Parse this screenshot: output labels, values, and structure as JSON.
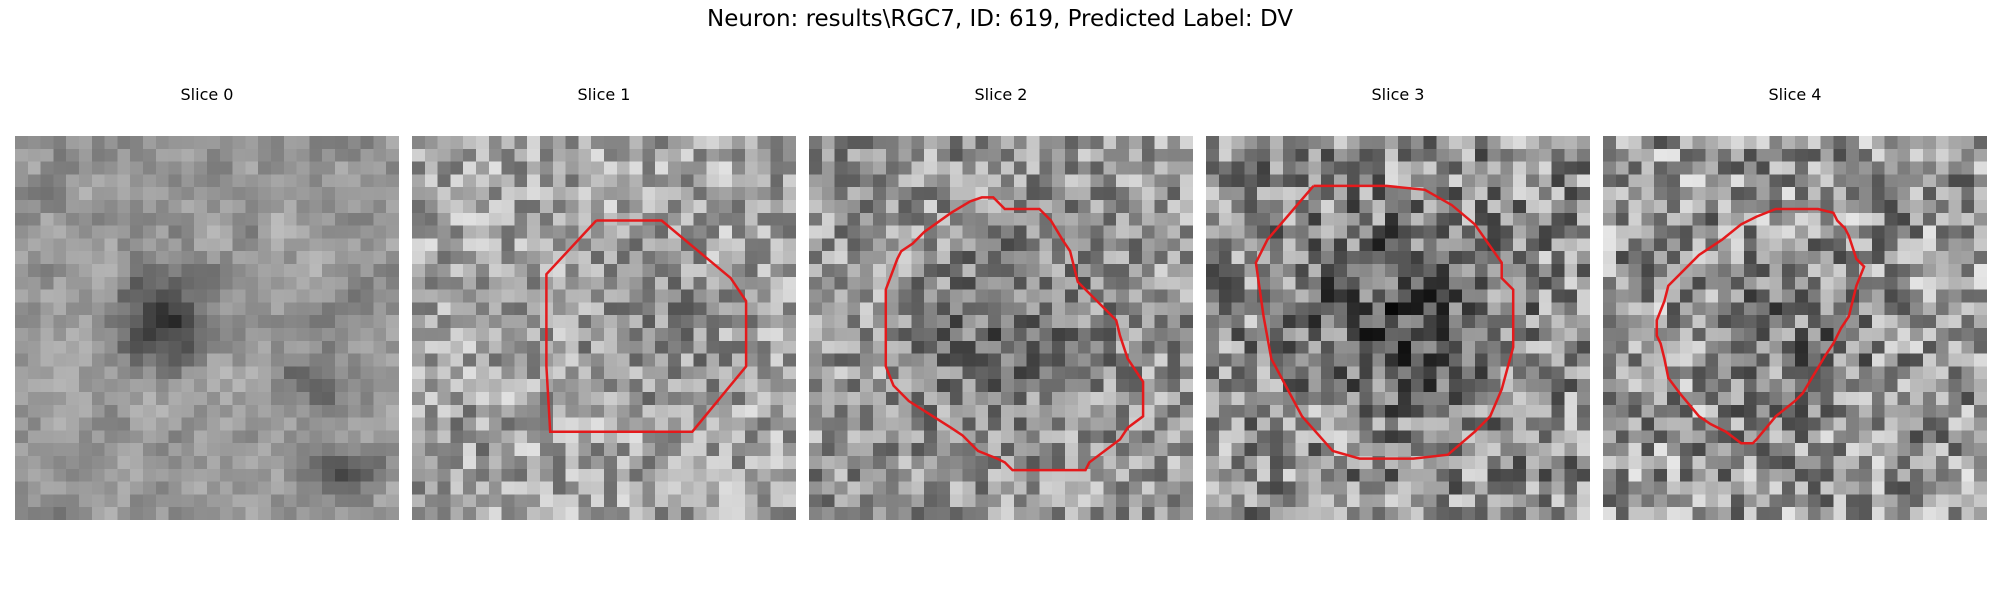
{
  "figure": {
    "title": "Neuron: results\\RGC7, ID: 619, Predicted Label: DV"
  },
  "slices": [
    {
      "title": "Slice 0",
      "has_contour": false
    },
    {
      "title": "Slice 1",
      "has_contour": true
    },
    {
      "title": "Slice 2",
      "has_contour": true
    },
    {
      "title": "Slice 3",
      "has_contour": true
    },
    {
      "title": "Slice 4",
      "has_contour": true
    }
  ],
  "colors": {
    "contour": "#e41a1c"
  }
}
